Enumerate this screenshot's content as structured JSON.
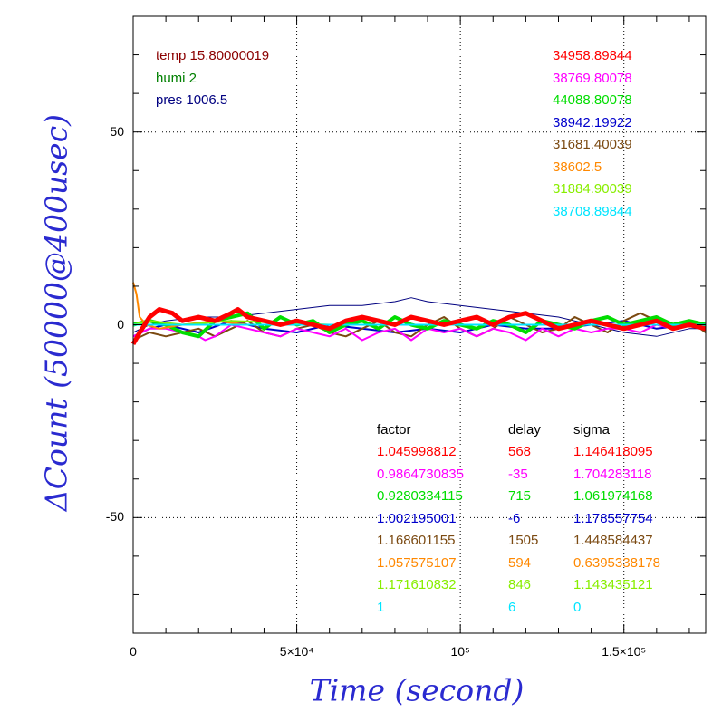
{
  "chart_data": {
    "type": "line",
    "xlabel": "Time (second)",
    "ylabel": "ΔCount (50000@400usec)",
    "xlim": [
      0,
      175000
    ],
    "ylim": [
      -80,
      80
    ],
    "grid": true,
    "x_tick_labels": [
      "0",
      "5×10⁴",
      "10⁵",
      "1.5×10⁵"
    ],
    "x_tick_values": [
      0,
      50000,
      100000,
      150000
    ],
    "y_tick_labels": [
      "50",
      "0",
      "-50"
    ],
    "y_tick_values": [
      50,
      0,
      -50
    ],
    "environment": [
      {
        "text": "temp 15.80000019",
        "color": "#8b0000"
      },
      {
        "text": "humi 2",
        "color": "#008000"
      },
      {
        "text": "pres 1006.5",
        "color": "#000080"
      }
    ],
    "series_totals": [
      {
        "text": "34958.89844",
        "color": "#ff0000"
      },
      {
        "text": "38769.80078",
        "color": "#ff00ff"
      },
      {
        "text": "44088.80078",
        "color": "#00dd00"
      },
      {
        "text": "38942.19922",
        "color": "#0000cc"
      },
      {
        "text": "31681.40039",
        "color": "#7b4a12"
      },
      {
        "text": "38602.5",
        "color": "#ff8800"
      },
      {
        "text": "31884.90039",
        "color": "#88ee00"
      },
      {
        "text": "38708.89844",
        "color": "#00e5ff"
      }
    ],
    "table_headers": [
      "factor",
      "delay",
      "sigma"
    ],
    "table_rows": [
      {
        "factor": "1.045998812",
        "delay": "568",
        "sigma": "1.146418095",
        "color": "#ff0000"
      },
      {
        "factor": "0.9864730835",
        "delay": "-35",
        "sigma": "1.704283118",
        "color": "#ff00ff"
      },
      {
        "factor": "0.9280334115",
        "delay": "715",
        "sigma": "1.061974168",
        "color": "#00dd00"
      },
      {
        "factor": "1.002195001",
        "delay": "-6",
        "sigma": "1.178557754",
        "color": "#0000cc"
      },
      {
        "factor": "1.168601155",
        "delay": "1505",
        "sigma": "1.448584437",
        "color": "#7b4a12"
      },
      {
        "factor": "1.057575107",
        "delay": "594",
        "sigma": "0.6395338178",
        "color": "#ff8800"
      },
      {
        "factor": "1.171610832",
        "delay": "846",
        "sigma": "1.143435121",
        "color": "#88ee00"
      },
      {
        "factor": "1",
        "delay": "6",
        "sigma": "0",
        "color": "#00e5ff"
      }
    ],
    "series": [
      {
        "color": "#000080",
        "x": [
          0,
          5000,
          10000,
          20000,
          30000,
          40000,
          50000,
          60000,
          70000,
          80000,
          85000,
          90000,
          100000,
          110000,
          120000,
          130000,
          140000,
          150000,
          160000,
          170000,
          175000
        ],
        "values": [
          -2,
          0,
          1,
          2,
          2,
          3,
          4,
          5,
          5,
          6,
          7,
          6,
          5,
          4,
          3,
          2,
          0,
          -2,
          -3,
          -1,
          -1
        ]
      },
      {
        "color": "#0000cc",
        "x": [
          0,
          5000,
          10000,
          20000,
          30000,
          40000,
          50000,
          60000,
          70000,
          80000,
          90000,
          100000,
          110000,
          120000,
          130000,
          140000,
          150000,
          160000,
          170000,
          175000
        ],
        "values": [
          -3,
          -1,
          0,
          -2,
          1,
          -1,
          -2,
          0,
          -1,
          -2,
          -1,
          -2,
          0,
          -1,
          -1,
          0,
          1,
          -1,
          0,
          -1
        ]
      },
      {
        "color": "#7b4a12",
        "x": [
          0,
          5000,
          10000,
          15000,
          20000,
          25000,
          30000,
          35000,
          40000,
          45000,
          50000,
          55000,
          60000,
          65000,
          70000,
          75000,
          80000,
          85000,
          90000,
          95000,
          100000,
          105000,
          110000,
          115000,
          120000,
          125000,
          130000,
          135000,
          140000,
          145000,
          150000,
          155000,
          160000,
          165000,
          170000,
          175000
        ],
        "values": [
          -4,
          -2,
          -3,
          -2,
          -1,
          -3,
          -1,
          1,
          -2,
          -3,
          -1,
          0,
          -2,
          -3,
          -1,
          1,
          -2,
          -3,
          0,
          2,
          -1,
          -3,
          -1,
          2,
          0,
          -2,
          -1,
          2,
          0,
          -2,
          1,
          3,
          1,
          -1,
          1,
          -2
        ]
      },
      {
        "color": "#ff00ff",
        "x": [
          0,
          5000,
          10000,
          15000,
          20000,
          22000,
          25000,
          30000,
          35000,
          40000,
          45000,
          50000,
          55000,
          60000,
          65000,
          70000,
          75000,
          80000,
          85000,
          90000,
          95000,
          100000,
          105000,
          110000,
          115000,
          120000,
          125000,
          130000,
          135000,
          140000,
          145000,
          150000,
          155000,
          160000,
          165000,
          170000,
          175000
        ],
        "values": [
          -3,
          -1,
          -1,
          -2,
          -3,
          -4,
          -3,
          0,
          -1,
          -2,
          -3,
          -1,
          -2,
          -3,
          -1,
          -4,
          -2,
          -1,
          -4,
          -1,
          -2,
          -1,
          -3,
          -1,
          -2,
          -4,
          -1,
          -3,
          -1,
          -2,
          -1,
          -1,
          -2,
          0,
          -1,
          0,
          -1
        ]
      },
      {
        "color": "#00dd00",
        "x": [
          0,
          5000,
          10000,
          15000,
          20000,
          25000,
          30000,
          35000,
          40000,
          45000,
          50000,
          55000,
          60000,
          65000,
          70000,
          75000,
          80000,
          85000,
          90000,
          95000,
          100000,
          105000,
          110000,
          115000,
          120000,
          125000,
          130000,
          135000,
          140000,
          145000,
          150000,
          155000,
          160000,
          165000,
          170000,
          175000
        ],
        "values": [
          0,
          1,
          0,
          -2,
          -3,
          1,
          2,
          3,
          -1,
          2,
          0,
          1,
          -2,
          0,
          1,
          -1,
          2,
          0,
          -1,
          1,
          0,
          -1,
          1,
          0,
          -2,
          1,
          0,
          -1,
          1,
          2,
          0,
          1,
          2,
          0,
          1,
          0
        ]
      },
      {
        "color": "#ff8800",
        "x": [
          0,
          1000,
          2000,
          4000,
          8000,
          15000,
          25000,
          35000,
          50000,
          100000,
          150000,
          175000
        ],
        "values": [
          11,
          8,
          2,
          0,
          -1,
          0,
          1,
          0,
          0,
          0,
          0,
          0
        ]
      },
      {
        "color": "#88ee00",
        "x": [
          0,
          5000,
          15000,
          30000,
          60000,
          100000,
          140000,
          175000
        ],
        "values": [
          0,
          1,
          0,
          1,
          0,
          0,
          0,
          0
        ]
      },
      {
        "color": "#00e5ff",
        "x": [
          0,
          175000
        ],
        "values": [
          0,
          0
        ]
      },
      {
        "color": "#ff0000",
        "x": [
          0,
          2000,
          5000,
          8000,
          12000,
          15000,
          20000,
          25000,
          30000,
          32000,
          35000,
          40000,
          45000,
          50000,
          55000,
          60000,
          65000,
          70000,
          75000,
          80000,
          85000,
          90000,
          95000,
          100000,
          105000,
          110000,
          115000,
          120000,
          125000,
          130000,
          135000,
          140000,
          145000,
          150000,
          155000,
          160000,
          165000,
          170000,
          175000
        ],
        "values": [
          -5,
          -2,
          2,
          4,
          3,
          1,
          2,
          1,
          3,
          4,
          2,
          1,
          0,
          1,
          0,
          -1,
          1,
          2,
          1,
          0,
          2,
          1,
          0,
          1,
          2,
          0,
          2,
          3,
          1,
          -1,
          0,
          1,
          0,
          -1,
          0,
          1,
          -1,
          0,
          -1
        ]
      }
    ]
  }
}
